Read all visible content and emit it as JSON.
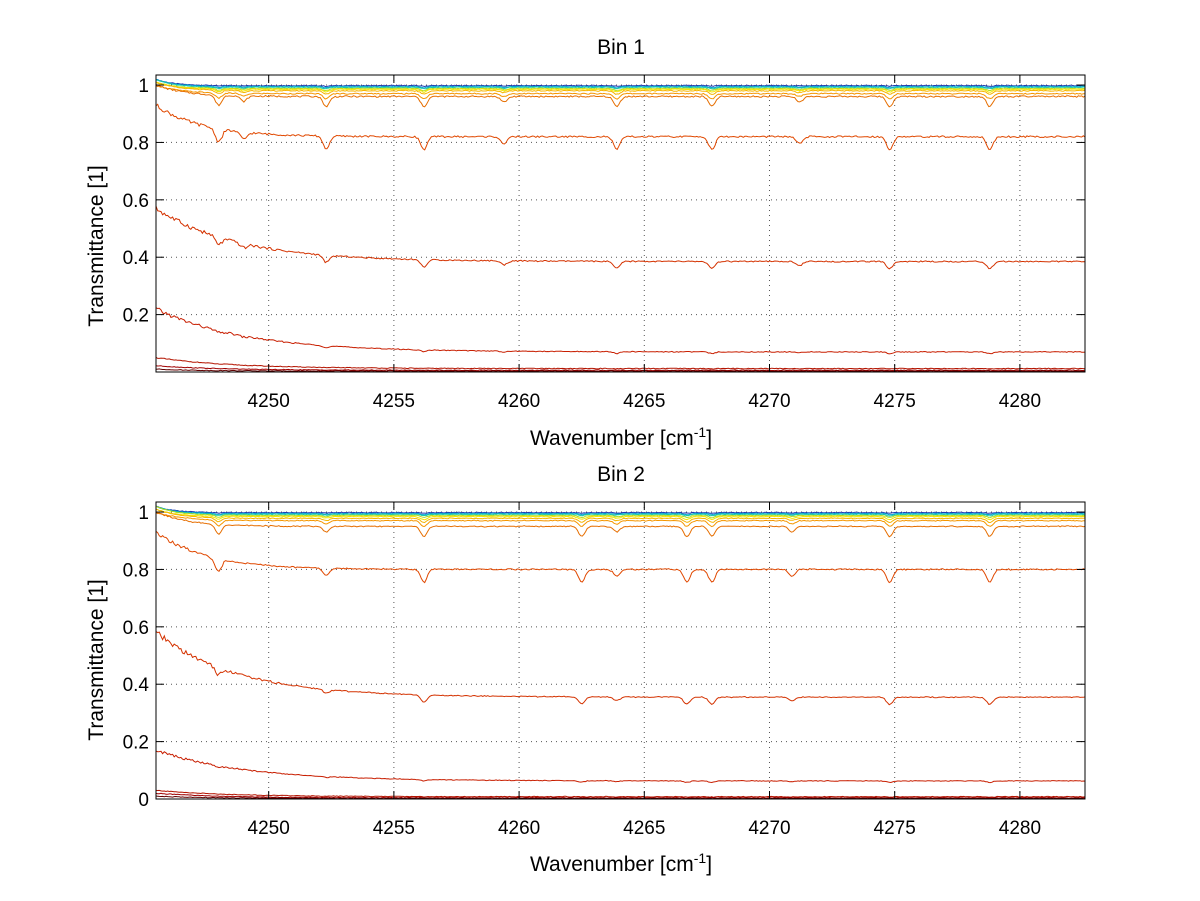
{
  "chart_data": [
    {
      "type": "line",
      "title": "Bin 1",
      "xlabel": "Wavenumber [cm",
      "xlabel_sup": "-1",
      "xlabel_end": "]",
      "ylabel": "Transmittance [1]",
      "xlim": [
        4245.5,
        4282.6
      ],
      "ylim": [
        0,
        1.035
      ],
      "grid": true,
      "xticks": [
        4250,
        4255,
        4260,
        4265,
        4270,
        4275,
        4280
      ],
      "xtick_labels": [
        "4250",
        "4255",
        "4260",
        "4265",
        "4270",
        "4275",
        "4280"
      ],
      "yticks": [
        0.2,
        0.4,
        0.6,
        0.8,
        1
      ],
      "ytick_labels": [
        "0.2",
        "0.4",
        "0.6",
        "0.8",
        "1"
      ],
      "dips": [
        4248.0,
        4249.0,
        4252.3,
        4256.2,
        4259.4,
        4263.9,
        4267.7,
        4271.2,
        4274.8,
        4278.8
      ],
      "series": [
        {
          "color": "#1e3cb4",
          "start": 1.02,
          "end": 0.998,
          "decay": 0.7,
          "dip": 0.002
        },
        {
          "color": "#00a0d2",
          "start": 1.02,
          "end": 0.995,
          "decay": 0.7,
          "dip": 0.004
        },
        {
          "color": "#19c8aa",
          "start": 1.02,
          "end": 0.992,
          "decay": 0.7,
          "dip": 0.005
        },
        {
          "color": "#b4dc1e",
          "start": 1.01,
          "end": 0.988,
          "decay": 0.8,
          "dip": 0.007
        },
        {
          "color": "#f5e600",
          "start": 1.01,
          "end": 0.985,
          "decay": 0.8,
          "dip": 0.009
        },
        {
          "color": "#f5b400",
          "start": 1.01,
          "end": 0.98,
          "decay": 0.9,
          "dip": 0.012
        },
        {
          "color": "#f59600",
          "start": 1.0,
          "end": 0.97,
          "decay": 1.0,
          "dip": 0.018
        },
        {
          "color": "#e66e00",
          "start": 1.0,
          "end": 0.96,
          "decay": 1.2,
          "dip": 0.035
        },
        {
          "color": "#e04800",
          "start": 0.93,
          "end": 0.82,
          "decay": 1.8,
          "dip": 0.045
        },
        {
          "color": "#d43200",
          "start": 0.57,
          "end": 0.385,
          "decay": 3.2,
          "dip": 0.025
        },
        {
          "color": "#c81e00",
          "start": 0.22,
          "end": 0.07,
          "decay": 3.5,
          "dip": 0.006
        },
        {
          "color": "#b41400",
          "start": 0.05,
          "end": 0.012,
          "decay": 3.0,
          "dip": 0.001
        },
        {
          "color": "#a00000",
          "start": 0.022,
          "end": 0.006,
          "decay": 2.5,
          "dip": 0.0
        },
        {
          "color": "#600000",
          "start": 0.01,
          "end": 0.003,
          "decay": 2.0,
          "dip": 0.0
        }
      ]
    },
    {
      "type": "line",
      "title": "Bin 2",
      "xlabel": "Wavenumber [cm",
      "xlabel_sup": "-1",
      "xlabel_end": "]",
      "ylabel": "Transmittance [1]",
      "xlim": [
        4245.5,
        4282.6
      ],
      "ylim": [
        0,
        1.035
      ],
      "grid": true,
      "xticks": [
        4250,
        4255,
        4260,
        4265,
        4270,
        4275,
        4280
      ],
      "xtick_labels": [
        "4250",
        "4255",
        "4260",
        "4265",
        "4270",
        "4275",
        "4280"
      ],
      "yticks": [
        0,
        0.2,
        0.4,
        0.6,
        0.8,
        1
      ],
      "ytick_labels": [
        "0",
        "0.2",
        "0.4",
        "0.6",
        "0.8",
        "1"
      ],
      "dips": [
        4248.0,
        4252.3,
        4256.2,
        4262.5,
        4263.9,
        4266.7,
        4267.7,
        4270.9,
        4274.8,
        4278.8
      ],
      "series": [
        {
          "color": "#1e3cb4",
          "start": 1.02,
          "end": 0.998,
          "decay": 0.7,
          "dip": 0.002
        },
        {
          "color": "#00a0d2",
          "start": 1.02,
          "end": 0.995,
          "decay": 0.7,
          "dip": 0.004
        },
        {
          "color": "#19c8aa",
          "start": 1.02,
          "end": 0.992,
          "decay": 0.7,
          "dip": 0.005
        },
        {
          "color": "#b4dc1e",
          "start": 1.02,
          "end": 0.988,
          "decay": 0.8,
          "dip": 0.007
        },
        {
          "color": "#f5e600",
          "start": 1.01,
          "end": 0.984,
          "decay": 0.8,
          "dip": 0.01
        },
        {
          "color": "#f5b400",
          "start": 1.01,
          "end": 0.978,
          "decay": 0.9,
          "dip": 0.014
        },
        {
          "color": "#f59600",
          "start": 1.0,
          "end": 0.97,
          "decay": 1.0,
          "dip": 0.02
        },
        {
          "color": "#e66e00",
          "start": 1.0,
          "end": 0.95,
          "decay": 1.3,
          "dip": 0.035
        },
        {
          "color": "#e04800",
          "start": 0.93,
          "end": 0.8,
          "decay": 2.0,
          "dip": 0.045
        },
        {
          "color": "#d43200",
          "start": 0.58,
          "end": 0.355,
          "decay": 3.2,
          "dip": 0.025
        },
        {
          "color": "#c81e00",
          "start": 0.17,
          "end": 0.063,
          "decay": 3.5,
          "dip": 0.005
        },
        {
          "color": "#b41400",
          "start": 0.03,
          "end": 0.008,
          "decay": 3.0,
          "dip": 0.001
        },
        {
          "color": "#a00000",
          "start": 0.02,
          "end": 0.004,
          "decay": 2.5,
          "dip": 0.0
        },
        {
          "color": "#600000",
          "start": 0.01,
          "end": 0.002,
          "decay": 2.0,
          "dip": 0.0
        }
      ]
    }
  ]
}
